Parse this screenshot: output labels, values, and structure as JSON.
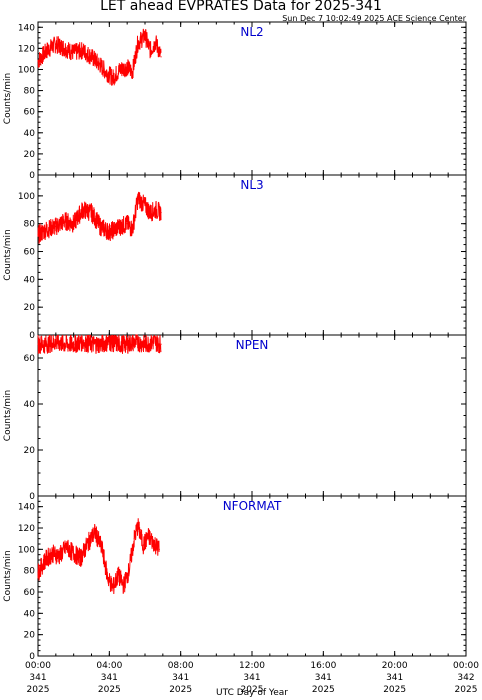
{
  "header": {
    "title": "LET ahead EVPRATES Data for 2025-341",
    "timestamp": "Sun Dec  7 10:02:49 2025 ACE Science Center"
  },
  "chart_data": {
    "type": "line",
    "xlabel": "UTC Day of Year",
    "xrange_hours": [
      0,
      24
    ],
    "x_ticks": [
      {
        "hour": 0,
        "time": "00:00",
        "doy": "341",
        "year": "2025"
      },
      {
        "hour": 4,
        "time": "04:00",
        "doy": "341",
        "year": "2025"
      },
      {
        "hour": 8,
        "time": "08:00",
        "doy": "341",
        "year": "2025"
      },
      {
        "hour": 12,
        "time": "12:00",
        "doy": "341",
        "year": "2025"
      },
      {
        "hour": 16,
        "time": "16:00",
        "doy": "341",
        "year": "2025"
      },
      {
        "hour": 20,
        "time": "20:00",
        "doy": "341",
        "year": "2025"
      },
      {
        "hour": 24,
        "time": "00:00",
        "doy": "342",
        "year": "2025"
      }
    ],
    "line_color": "#ff0000",
    "panels": [
      {
        "name": "NL2",
        "ylabel": "Counts/min",
        "ylim": [
          0,
          145
        ],
        "y_ticks": [
          0,
          20,
          40,
          60,
          80,
          100,
          120,
          140
        ],
        "series": {
          "x": [
            0,
            0.5,
            1,
            1.5,
            2,
            2.5,
            3,
            3.5,
            3.8,
            4.2,
            4.6,
            5,
            5.3,
            5.6,
            6,
            6.3,
            6.6,
            6.9
          ],
          "y": [
            108,
            118,
            124,
            120,
            116,
            118,
            112,
            104,
            98,
            92,
            100,
            102,
            98,
            125,
            132,
            118,
            126,
            112
          ]
        }
      },
      {
        "name": "NL3",
        "ylabel": "Counts/min",
        "ylim": [
          0,
          115
        ],
        "y_ticks": [
          0,
          20,
          40,
          60,
          80,
          100
        ],
        "series": {
          "x": [
            0,
            0.5,
            1,
            1.5,
            2,
            2.5,
            3,
            3.5,
            4,
            4.3,
            4.6,
            5,
            5.3,
            5.6,
            6,
            6.3,
            6.6,
            6.9
          ],
          "y": [
            72,
            76,
            78,
            82,
            80,
            90,
            88,
            78,
            74,
            76,
            78,
            80,
            76,
            98,
            93,
            88,
            90,
            88
          ]
        }
      },
      {
        "name": "NPEN",
        "ylabel": "Counts/min",
        "ylim": [
          0,
          70
        ],
        "y_ticks": [
          0,
          20,
          40,
          60
        ],
        "series": {
          "x": [
            0,
            0.5,
            1,
            1.5,
            2,
            2.5,
            3,
            3.5,
            4,
            4.5,
            5,
            5.5,
            6,
            6.5,
            6.9
          ],
          "y": [
            66,
            66,
            67,
            66,
            66,
            67,
            66,
            66,
            67,
            66,
            66,
            67,
            66,
            67,
            66
          ]
        }
      },
      {
        "name": "NFORMAT",
        "ylabel": "Counts/min",
        "ylim": [
          0,
          150
        ],
        "y_ticks": [
          0,
          20,
          40,
          60,
          80,
          100,
          120,
          140
        ],
        "series": {
          "x": [
            0,
            0.4,
            0.8,
            1.2,
            1.6,
            2,
            2.4,
            2.8,
            3.2,
            3.6,
            3.9,
            4.2,
            4.5,
            4.8,
            5.1,
            5.4,
            5.6,
            5.9,
            6.2,
            6.5,
            6.8
          ],
          "y": [
            78,
            90,
            96,
            94,
            102,
            96,
            92,
            106,
            116,
            100,
            74,
            64,
            76,
            66,
            80,
            110,
            122,
            104,
            112,
            106,
            100
          ]
        }
      }
    ]
  }
}
